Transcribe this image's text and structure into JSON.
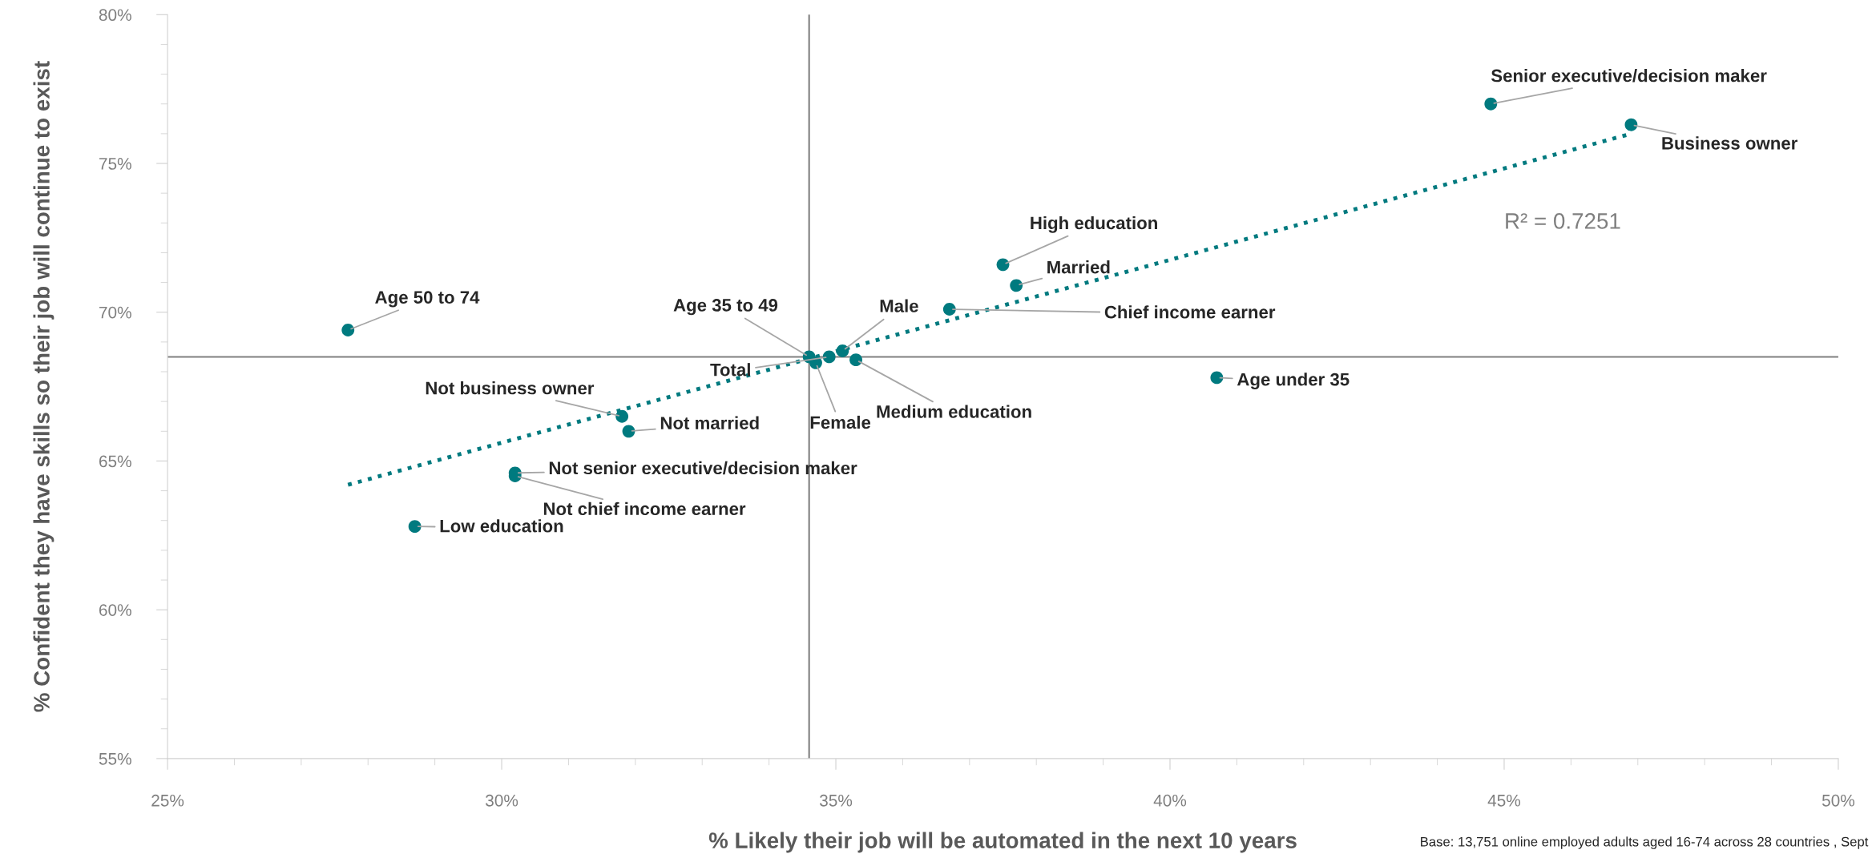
{
  "chart_data": {
    "type": "scatter",
    "xlabel": "% Likely their job will be automated in the next 10 years",
    "ylabel": "% Confident they have skills so their job will continue to exist",
    "xlim": [
      25,
      50
    ],
    "ylim": [
      55,
      80
    ],
    "xticks": [
      {
        "value": 25,
        "label": "25%"
      },
      {
        "value": 30,
        "label": "30%"
      },
      {
        "value": 35,
        "label": "35%"
      },
      {
        "value": 40,
        "label": "40%"
      },
      {
        "value": 45,
        "label": "45%"
      },
      {
        "value": 50,
        "label": "50%"
      }
    ],
    "yticks": [
      {
        "value": 55,
        "label": "55%"
      },
      {
        "value": 60,
        "label": "60%"
      },
      {
        "value": 65,
        "label": "65%"
      },
      {
        "value": 70,
        "label": "70%"
      },
      {
        "value": 75,
        "label": "75%"
      },
      {
        "value": 80,
        "label": "80%"
      }
    ],
    "grid": false,
    "legend": false,
    "marker": "circle",
    "series": [
      {
        "color": "#007a7f",
        "x": [
          44.8,
          46.9,
          37.5,
          37.7,
          36.7,
          27.7,
          40.7,
          34.6,
          34.9,
          34.7,
          35.1,
          35.3,
          31.8,
          31.9,
          30.2,
          30.2,
          28.7
        ],
        "values": [
          77.0,
          76.3,
          71.6,
          70.9,
          70.1,
          69.4,
          67.8,
          68.5,
          68.5,
          68.3,
          68.7,
          68.4,
          66.5,
          66.0,
          64.6,
          64.5,
          62.8
        ]
      },
      {
        "type": "line",
        "color": "#007a7f",
        "line_style": "dotted",
        "marker": "none",
        "x": [
          27.7,
          46.9
        ],
        "values": [
          64.2,
          76.0
        ]
      }
    ],
    "ref_lines": [
      {
        "axis": "x",
        "value": 34.6,
        "color": "#808080"
      },
      {
        "axis": "y",
        "value": 68.5,
        "color": "#808080"
      }
    ],
    "annotations": [
      {
        "text": "Senior executive/decision maker",
        "x": 44.8,
        "y": 77.0
      },
      {
        "text": "Business owner",
        "x": 46.9,
        "y": 76.3
      },
      {
        "text": "High education",
        "x": 37.5,
        "y": 71.6
      },
      {
        "text": "Married",
        "x": 37.7,
        "y": 70.9
      },
      {
        "text": "Chief income earner",
        "x": 36.7,
        "y": 70.1
      },
      {
        "text": "Age 50 to 74",
        "x": 27.7,
        "y": 69.4
      },
      {
        "text": "Age under 35",
        "x": 40.7,
        "y": 67.8
      },
      {
        "text": "Age 35 to 49",
        "x": 34.6,
        "y": 68.5
      },
      {
        "text": "Total",
        "x": 34.9,
        "y": 68.5
      },
      {
        "text": "Female",
        "x": 34.7,
        "y": 68.3
      },
      {
        "text": "Male",
        "x": 35.1,
        "y": 68.7
      },
      {
        "text": "Medium education",
        "x": 35.3,
        "y": 68.4
      },
      {
        "text": "Not business owner",
        "x": 31.8,
        "y": 66.5
      },
      {
        "text": "Not married",
        "x": 31.9,
        "y": 66.0
      },
      {
        "text": "Not senior executive/decision maker",
        "x": 30.2,
        "y": 64.6
      },
      {
        "text": "Not chief income earner",
        "x": 30.2,
        "y": 64.5
      },
      {
        "text": "Low education",
        "x": 28.7,
        "y": 62.8
      },
      "R² = 0.7251",
      "Base: 13,751 online employed adults aged 16-74 across 28 countries , Sept"
    ]
  }
}
